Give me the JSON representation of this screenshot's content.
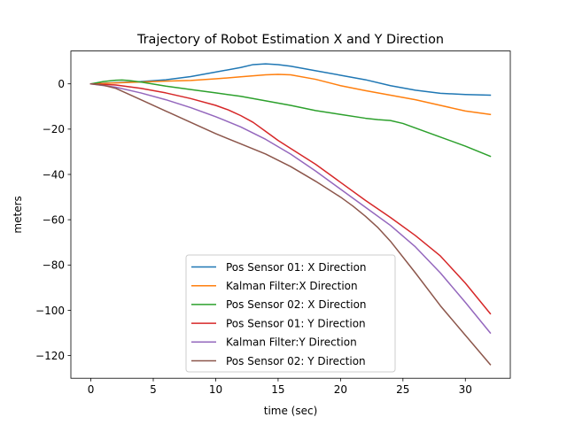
{
  "chart_data": {
    "type": "line",
    "title": "Trajectory of Robot Estimation X and Y Direction",
    "xlabel": "time (sec)",
    "ylabel": "meters",
    "xlim": [
      -1.6,
      33.6
    ],
    "ylim": [
      -130,
      14.5
    ],
    "xticks": [
      0,
      5,
      10,
      15,
      20,
      25,
      30
    ],
    "yticks": [
      0,
      -20,
      -40,
      -60,
      -80,
      -100,
      -120
    ],
    "grid": false,
    "legend_position": "lower center",
    "series": [
      {
        "name": "Pos Sensor 01: X Direction",
        "color": "#1f77b4",
        "x": [
          0,
          2,
          4,
          6,
          8,
          10,
          12,
          13,
          14,
          15,
          16,
          18,
          20,
          22,
          24,
          26,
          28,
          30,
          32
        ],
        "y": [
          0,
          0.5,
          1,
          1.8,
          3.2,
          5.2,
          7.2,
          8.5,
          8.8,
          8.5,
          7.8,
          5.8,
          3.8,
          1.8,
          -0.8,
          -2.8,
          -4.2,
          -4.7,
          -5
        ]
      },
      {
        "name": "Kalman Filter:X Direction",
        "color": "#ff7f0e",
        "x": [
          0,
          2,
          4,
          6,
          8,
          10,
          12,
          14,
          15,
          16,
          18,
          20,
          22,
          24,
          26,
          28,
          30,
          32
        ],
        "y": [
          0,
          0.4,
          0.8,
          1.2,
          1.5,
          2.2,
          3.1,
          4,
          4.2,
          4,
          2,
          -0.8,
          -3,
          -5,
          -7,
          -9.5,
          -12,
          -13.5
        ]
      },
      {
        "name": "Pos Sensor 02: X Direction",
        "color": "#2ca02c",
        "x": [
          0,
          1,
          2,
          2.5,
          3,
          4,
          6,
          8,
          10,
          12,
          14,
          16,
          18,
          20,
          22,
          23,
          24,
          25,
          26,
          28,
          30,
          32
        ],
        "y": [
          0,
          1,
          1.6,
          1.7,
          1.5,
          0.8,
          -1,
          -2.5,
          -4,
          -5.5,
          -7.5,
          -9.5,
          -11.8,
          -13.5,
          -15.2,
          -15.8,
          -16.2,
          -17.5,
          -19.5,
          -23.5,
          -27.5,
          -32
        ]
      },
      {
        "name": "Pos Sensor 01: Y Direction",
        "color": "#d62728",
        "x": [
          0,
          2,
          4,
          6,
          8,
          10,
          11,
          12,
          13,
          14,
          15,
          16,
          18,
          20,
          22,
          24,
          26,
          28,
          30,
          32
        ],
        "y": [
          0,
          -0.5,
          -2,
          -4,
          -6.5,
          -9.5,
          -11.5,
          -14,
          -17,
          -21,
          -25,
          -28.5,
          -35.5,
          -43.5,
          -51.5,
          -59,
          -67,
          -76,
          -88,
          -101.5
        ]
      },
      {
        "name": "Kalman Filter:Y Direction",
        "color": "#9467bd",
        "x": [
          0,
          2,
          4,
          6,
          8,
          10,
          12,
          14,
          16,
          18,
          20,
          22,
          24,
          26,
          28,
          30,
          32
        ],
        "y": [
          0,
          -1.5,
          -4,
          -7,
          -10.5,
          -14.5,
          -19,
          -24.5,
          -31,
          -38.5,
          -46.5,
          -54.5,
          -62.5,
          -72,
          -83.5,
          -96.5,
          -110
        ]
      },
      {
        "name": "Pos Sensor 02: Y Direction",
        "color": "#8c564b",
        "x": [
          0,
          1,
          2,
          4,
          6,
          8,
          10,
          12,
          14,
          16,
          18,
          20,
          21,
          22,
          23,
          24,
          26,
          28,
          30,
          32
        ],
        "y": [
          0,
          -0.6,
          -2,
          -7,
          -12,
          -17,
          -22,
          -26.5,
          -31,
          -36.5,
          -43,
          -50,
          -54,
          -58.5,
          -63.5,
          -69.5,
          -83.5,
          -98,
          -111,
          -124
        ]
      }
    ]
  }
}
